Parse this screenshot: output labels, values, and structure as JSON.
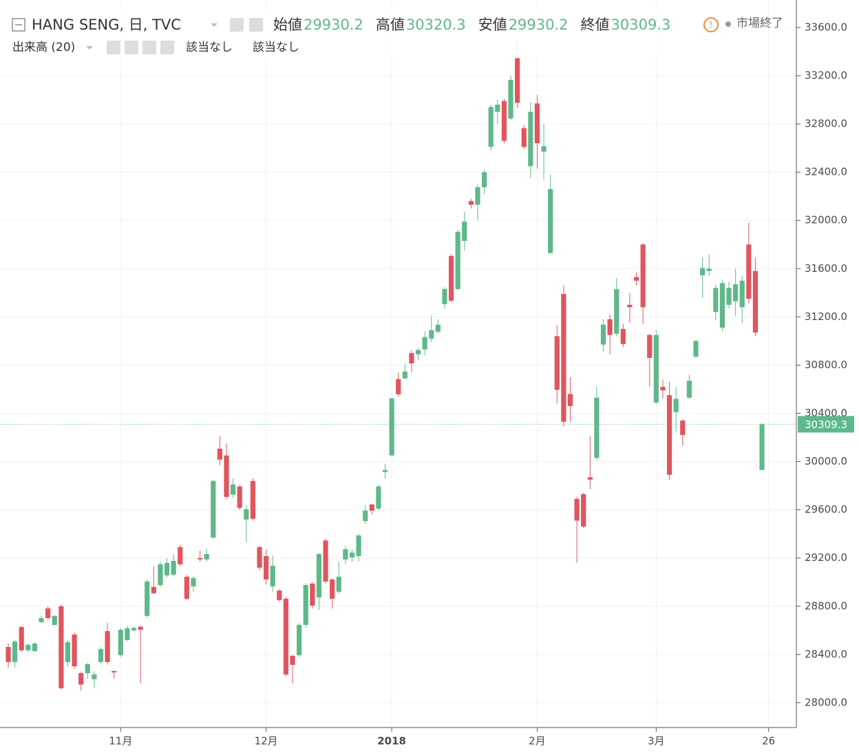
{
  "chart_data": {
    "type": "candlestick",
    "title": "HANG SENG, 日, TVC",
    "ohlc_labels": [
      "始値",
      "高値",
      "安値",
      "終値"
    ],
    "indicator": "出来高 (20)",
    "indicator_values": [
      "該当なし",
      "該当なし"
    ],
    "status": "市場終了",
    "up_color": "#5fb88a",
    "down_color": "#e0555e",
    "grid": true,
    "open": [
      28462,
      28337,
      28628,
      28434,
      28428,
      28668,
      28782,
      28645,
      28800,
      28337,
      28565,
      28245,
      28245,
      28195,
      28337,
      28594,
      28262,
      28394,
      28520,
      28600,
      28630,
      28720,
      28960,
      28976,
      29056,
      29062,
      29290,
      29045,
      28965,
      29200,
      29188,
      29370,
      30107,
      30050,
      29725,
      29793,
      29519,
      29839,
      29290,
      29216,
      28965,
      28930,
      28862,
      28388,
      28394,
      28645,
      28988,
      28873,
      29345,
      29022,
      28920,
      29188,
      29205,
      29216,
      29507,
      29644,
      29610,
      29913,
      30051,
      30684,
      30690,
      30900,
      30890,
      30930,
      31020,
      31077,
      31306,
      31705,
      31431,
      31830,
      32160,
      32130,
      32275,
      32610,
      32900,
      32990,
      32845,
      33345,
      32765,
      32450,
      32970,
      32570,
      31730,
      31040,
      31390,
      30560,
      29690,
      29730,
      29870,
      30030,
      30970,
      31180,
      31060,
      31100,
      31300,
      31530,
      31800,
      31050,
      30490,
      30620,
      30550,
      30410,
      30340,
      30530,
      30870,
      31545,
      31580,
      31240,
      31110,
      31300,
      31330,
      31280,
      31800,
      31580,
      29930.2
    ],
    "high": [
      28491,
      28520,
      28634,
      28490,
      28500,
      28720,
      28800,
      28730,
      28816,
      28520,
      28580,
      28260,
      28330,
      28260,
      28460,
      28662,
      28270,
      28620,
      28640,
      28630,
      28640,
      29020,
      29130,
      29170,
      29200,
      29230,
      29310,
      29060,
      29050,
      29260,
      29280,
      29850,
      30210,
      30150,
      29860,
      29810,
      29640,
      29860,
      29300,
      29270,
      29220,
      28940,
      28880,
      28400,
      28660,
      28990,
      29000,
      29240,
      29360,
      29030,
      29170,
      29300,
      29270,
      29400,
      29640,
      29650,
      29810,
      29980,
      30530,
      30740,
      30810,
      30920,
      30940,
      31080,
      31210,
      31180,
      31450,
      31720,
      31920,
      32070,
      32180,
      32300,
      32420,
      32960,
      33000,
      33010,
      33200,
      33490,
      32790,
      32980,
      33040,
      32800,
      32380,
      31130,
      31460,
      30700,
      29710,
      29740,
      30210,
      30620,
      31180,
      31220,
      31520,
      31140,
      31400,
      31570,
      31810,
      31060,
      31090,
      30680,
      30660,
      30620,
      30350,
      30720,
      31010,
      31690,
      31720,
      31470,
      31510,
      31490,
      31600,
      31540,
      31980,
      31690,
      30320.3
    ],
    "low": [
      28291,
      28291,
      28417,
      28420,
      28420,
      28660,
      28690,
      28640,
      28110,
      28300,
      28280,
      28100,
      28200,
      28120,
      28320,
      28320,
      28200,
      28380,
      28510,
      28590,
      28160,
      28710,
      28900,
      28960,
      29040,
      29050,
      29130,
      28850,
      28920,
      29170,
      29170,
      29360,
      29970,
      29690,
      29700,
      29600,
      29330,
      29510,
      29100,
      28980,
      28920,
      28840,
      28220,
      28160,
      28380,
      28620,
      28780,
      28770,
      28990,
      28780,
      28900,
      29150,
      29170,
      29170,
      29480,
      29560,
      29590,
      29860,
      30040,
      30540,
      30680,
      30740,
      30840,
      30880,
      30990,
      31060,
      31270,
      31320,
      31420,
      31750,
      32100,
      32000,
      32220,
      32580,
      32800,
      32640,
      32830,
      32930,
      32590,
      32350,
      32430,
      32340,
      31720,
      30480,
      30290,
      30330,
      29160,
      29450,
      29770,
      30010,
      30910,
      30890,
      31040,
      30950,
      31150,
      31460,
      31140,
      30620,
      30480,
      30520,
      29850,
      30240,
      30130,
      30520,
      30860,
      31360,
      31540,
      31170,
      31080,
      31270,
      31210,
      31150,
      31310,
      31040,
      29930.2
    ],
    "close": [
      28337,
      28508,
      28434,
      28480,
      28491,
      28702,
      28702,
      28720,
      28120,
      28502,
      28302,
      28150,
      28320,
      28234,
      28445,
      28337,
      28251,
      28605,
      28617,
      28620,
      28605,
      29005,
      28908,
      29148,
      29159,
      29176,
      29148,
      28862,
      29033,
      29188,
      29233,
      29839,
      30016,
      29707,
      29810,
      29616,
      29605,
      29525,
      29120,
      29022,
      29136,
      28851,
      28234,
      28314,
      28645,
      28976,
      28805,
      29233,
      29005,
      28862,
      29045,
      29273,
      29245,
      29387,
      29593,
      29593,
      29793,
      29930,
      30524,
      30558,
      30747,
      30814,
      30925,
      31033,
      31090,
      31135,
      31431,
      31334,
      31905,
      31990,
      32130,
      32275,
      32400,
      32940,
      32960,
      32660,
      33165,
      32975,
      32610,
      32900,
      32640,
      32615,
      32260,
      30595,
      30330,
      30460,
      29510,
      29460,
      29850,
      30530,
      31135,
      31050,
      31430,
      30975,
      31280,
      31500,
      31280,
      30860,
      31050,
      30590,
      29890,
      30520,
      30220,
      30670,
      31000,
      31605,
      31600,
      31440,
      31480,
      31440,
      31470,
      31500,
      31350,
      31070,
      30309.3
    ],
    "xlim": [
      -1.25,
      119.2
    ],
    "xticks": [
      {
        "value": 17,
        "label": "11月"
      },
      {
        "value": 39,
        "label": "12月"
      },
      {
        "value": 58,
        "label": "2018"
      },
      {
        "value": 80,
        "label": "2月"
      },
      {
        "value": 98,
        "label": "3月"
      },
      {
        "value": 115,
        "label": "26"
      }
    ],
    "ylim": [
      27794,
      33828
    ],
    "yticks": [
      {
        "value": 28000,
        "label": "28000.0"
      },
      {
        "value": 28400,
        "label": "28400.0"
      },
      {
        "value": 28800,
        "label": "28800.0"
      },
      {
        "value": 29200,
        "label": "29200.0"
      },
      {
        "value": 29600,
        "label": "29600.0"
      },
      {
        "value": 30000,
        "label": "30000.0"
      },
      {
        "value": 30400,
        "label": "30400.0"
      },
      {
        "value": 30800,
        "label": "30800.0"
      },
      {
        "value": 31200,
        "label": "31200.0"
      },
      {
        "value": 31600,
        "label": "31600.0"
      },
      {
        "value": 32000,
        "label": "32000.0"
      },
      {
        "value": 32400,
        "label": "32400.0"
      },
      {
        "value": 32800,
        "label": "32800.0"
      },
      {
        "value": 33200,
        "label": "33200.0"
      },
      {
        "value": 33600,
        "label": "33600.0"
      }
    ]
  }
}
